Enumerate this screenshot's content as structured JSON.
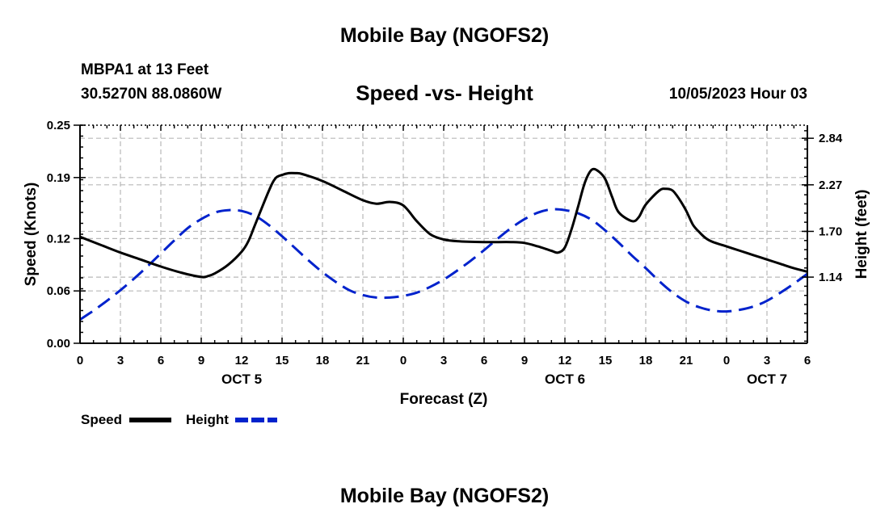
{
  "header": {
    "title": "Mobile Bay (NGOFS2)",
    "station": "MBPA1 at 13 Feet",
    "coords": "30.5270N  88.0860W",
    "subtitle": "Speed -vs- Height",
    "datetime": "10/05/2023 Hour 03",
    "bottom_title": "Mobile Bay (NGOFS2)"
  },
  "chart_data": {
    "type": "line",
    "xlabel": "Forecast (Z)",
    "ylabel_left": "Speed (Knots)",
    "ylabel_right": "Height (feet)",
    "xlim": [
      0,
      54
    ],
    "ylim_left": [
      0,
      0.25
    ],
    "ylim_right": [
      0.33,
      3.0
    ],
    "x_ticks": [
      0,
      3,
      6,
      9,
      12,
      15,
      18,
      21,
      24,
      27,
      30,
      33,
      36,
      39,
      42,
      45,
      48,
      51,
      54
    ],
    "x_tick_labels": [
      "0",
      "3",
      "6",
      "9",
      "12",
      "15",
      "18",
      "21",
      "0",
      "3",
      "6",
      "9",
      "12",
      "15",
      "18",
      "21",
      "0",
      "3",
      "6"
    ],
    "date_labels": [
      {
        "x": 12,
        "label": "OCT 5"
      },
      {
        "x": 36,
        "label": "OCT 6"
      },
      {
        "x": 51,
        "label": "OCT 7"
      }
    ],
    "y_ticks_left": [
      0.0,
      0.06,
      0.12,
      0.19,
      0.25
    ],
    "y_tick_labels_left": [
      "0.00",
      "0.06",
      "0.12",
      "0.19",
      "0.25"
    ],
    "y_ticks_right": [
      1.14,
      1.7,
      2.27,
      2.84
    ],
    "y_tick_labels_right": [
      "1.14",
      "1.70",
      "2.27",
      "2.84"
    ],
    "grid": true,
    "series": [
      {
        "name": "Speed",
        "axis": "left",
        "color": "#000000",
        "style": "solid",
        "x": [
          0,
          1.5,
          3,
          4.5,
          6,
          7.5,
          9,
          9.5,
          10,
          11,
          12,
          12.5,
          13,
          14,
          14.5,
          15,
          15.5,
          16,
          16.5,
          18,
          19.5,
          21,
          22,
          23,
          24,
          25,
          26,
          27,
          28,
          30,
          32,
          33,
          34,
          35,
          35.5,
          36,
          36.5,
          37,
          37.5,
          38,
          38.5,
          39,
          39.5,
          40,
          41,
          41.5,
          42,
          43,
          43.5,
          44,
          44.5,
          45,
          45.5,
          46,
          46.5,
          47,
          48,
          49,
          50,
          51,
          52,
          53,
          54
        ],
        "values": [
          0.122,
          0.113,
          0.104,
          0.096,
          0.088,
          0.081,
          0.076,
          0.077,
          0.08,
          0.09,
          0.105,
          0.117,
          0.136,
          0.174,
          0.189,
          0.193,
          0.195,
          0.195,
          0.194,
          0.186,
          0.175,
          0.164,
          0.16,
          0.162,
          0.158,
          0.14,
          0.125,
          0.119,
          0.117,
          0.116,
          0.116,
          0.115,
          0.111,
          0.106,
          0.104,
          0.11,
          0.131,
          0.158,
          0.185,
          0.199,
          0.197,
          0.188,
          0.168,
          0.15,
          0.14,
          0.145,
          0.159,
          0.175,
          0.177,
          0.175,
          0.165,
          0.152,
          0.136,
          0.127,
          0.12,
          0.116,
          0.111,
          0.106,
          0.101,
          0.096,
          0.091,
          0.086,
          0.082
        ]
      },
      {
        "name": "Height",
        "axis": "right",
        "color": "#0022cc",
        "style": "dashed",
        "x": [
          0,
          1,
          2,
          3,
          4,
          5,
          6,
          7,
          8,
          9,
          10,
          11,
          12,
          13,
          14,
          15,
          16,
          17,
          18,
          19,
          20,
          21,
          22,
          23,
          24,
          25,
          26,
          27,
          28,
          29,
          30,
          31,
          32,
          33,
          34,
          35,
          36,
          37,
          38,
          39,
          40,
          41,
          42,
          43,
          44,
          45,
          46,
          47,
          48,
          49,
          50,
          51,
          52,
          53,
          54
        ],
        "values": [
          0.62,
          0.73,
          0.85,
          0.98,
          1.12,
          1.27,
          1.43,
          1.59,
          1.74,
          1.85,
          1.93,
          1.96,
          1.95,
          1.89,
          1.78,
          1.64,
          1.49,
          1.34,
          1.2,
          1.08,
          0.98,
          0.92,
          0.89,
          0.89,
          0.91,
          0.95,
          1.02,
          1.11,
          1.22,
          1.34,
          1.47,
          1.61,
          1.74,
          1.85,
          1.93,
          1.97,
          1.96,
          1.92,
          1.84,
          1.71,
          1.56,
          1.4,
          1.25,
          1.09,
          0.95,
          0.84,
          0.77,
          0.73,
          0.72,
          0.74,
          0.78,
          0.85,
          0.95,
          1.06,
          1.18
        ]
      }
    ],
    "legend": [
      {
        "label": "Speed",
        "color": "#000000",
        "style": "solid"
      },
      {
        "label": "Height",
        "color": "#0022cc",
        "style": "dashed"
      }
    ]
  }
}
